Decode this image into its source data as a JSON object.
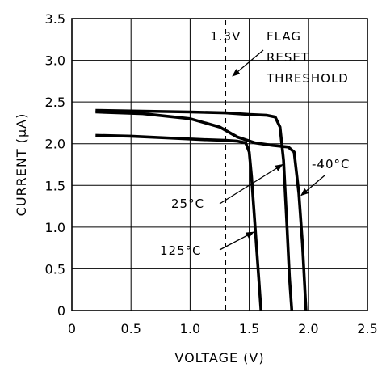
{
  "chart_data": {
    "type": "line",
    "xlabel": "VOLTAGE (V)",
    "ylabel": "CURRENT (μA)",
    "xlim": [
      0,
      2.5
    ],
    "ylim": [
      0,
      3.5
    ],
    "x_ticks": [
      0,
      0.5,
      1.0,
      1.5,
      2.0,
      2.5
    ],
    "x_tick_labels": [
      "0",
      "0.5",
      "1.0",
      "1.5",
      "2.0",
      "2.5"
    ],
    "y_ticks": [
      0,
      0.5,
      1.0,
      1.5,
      2.0,
      2.5,
      3.0,
      3.5
    ],
    "y_tick_labels": [
      "0",
      "0.5",
      "1.0",
      "1.5",
      "2.0",
      "2.5",
      "3.0",
      "3.5"
    ],
    "grid": true,
    "series": [
      {
        "name": "125°C",
        "points": [
          [
            0.2,
            2.1
          ],
          [
            0.5,
            2.09
          ],
          [
            0.8,
            2.07
          ],
          [
            1.1,
            2.05
          ],
          [
            1.3,
            2.04
          ],
          [
            1.4,
            2.03
          ],
          [
            1.47,
            2.01
          ],
          [
            1.5,
            1.9
          ],
          [
            1.52,
            1.6
          ],
          [
            1.55,
            1.0
          ],
          [
            1.58,
            0.4
          ],
          [
            1.6,
            0
          ]
        ]
      },
      {
        "name": "25°C",
        "points": [
          [
            0.2,
            2.4
          ],
          [
            0.6,
            2.39
          ],
          [
            1.0,
            2.38
          ],
          [
            1.3,
            2.37
          ],
          [
            1.5,
            2.35
          ],
          [
            1.65,
            2.34
          ],
          [
            1.72,
            2.32
          ],
          [
            1.76,
            2.2
          ],
          [
            1.79,
            1.8
          ],
          [
            1.82,
            1.0
          ],
          [
            1.84,
            0.4
          ],
          [
            1.86,
            0
          ]
        ]
      },
      {
        "name": "-40°C",
        "points": [
          [
            0.2,
            2.38
          ],
          [
            0.6,
            2.36
          ],
          [
            1.0,
            2.3
          ],
          [
            1.25,
            2.2
          ],
          [
            1.4,
            2.08
          ],
          [
            1.55,
            2.01
          ],
          [
            1.7,
            1.98
          ],
          [
            1.83,
            1.96
          ],
          [
            1.88,
            1.9
          ],
          [
            1.92,
            1.4
          ],
          [
            1.95,
            0.8
          ],
          [
            1.98,
            0
          ]
        ]
      }
    ],
    "threshold": {
      "x": 1.3,
      "label": "1.3V"
    },
    "annotations": {
      "flag_lines": [
        "FLAG",
        "RESET",
        "THRESHOLD"
      ],
      "label_125": "125°C",
      "label_25": "25°C",
      "label_m40": "-40°C"
    }
  }
}
